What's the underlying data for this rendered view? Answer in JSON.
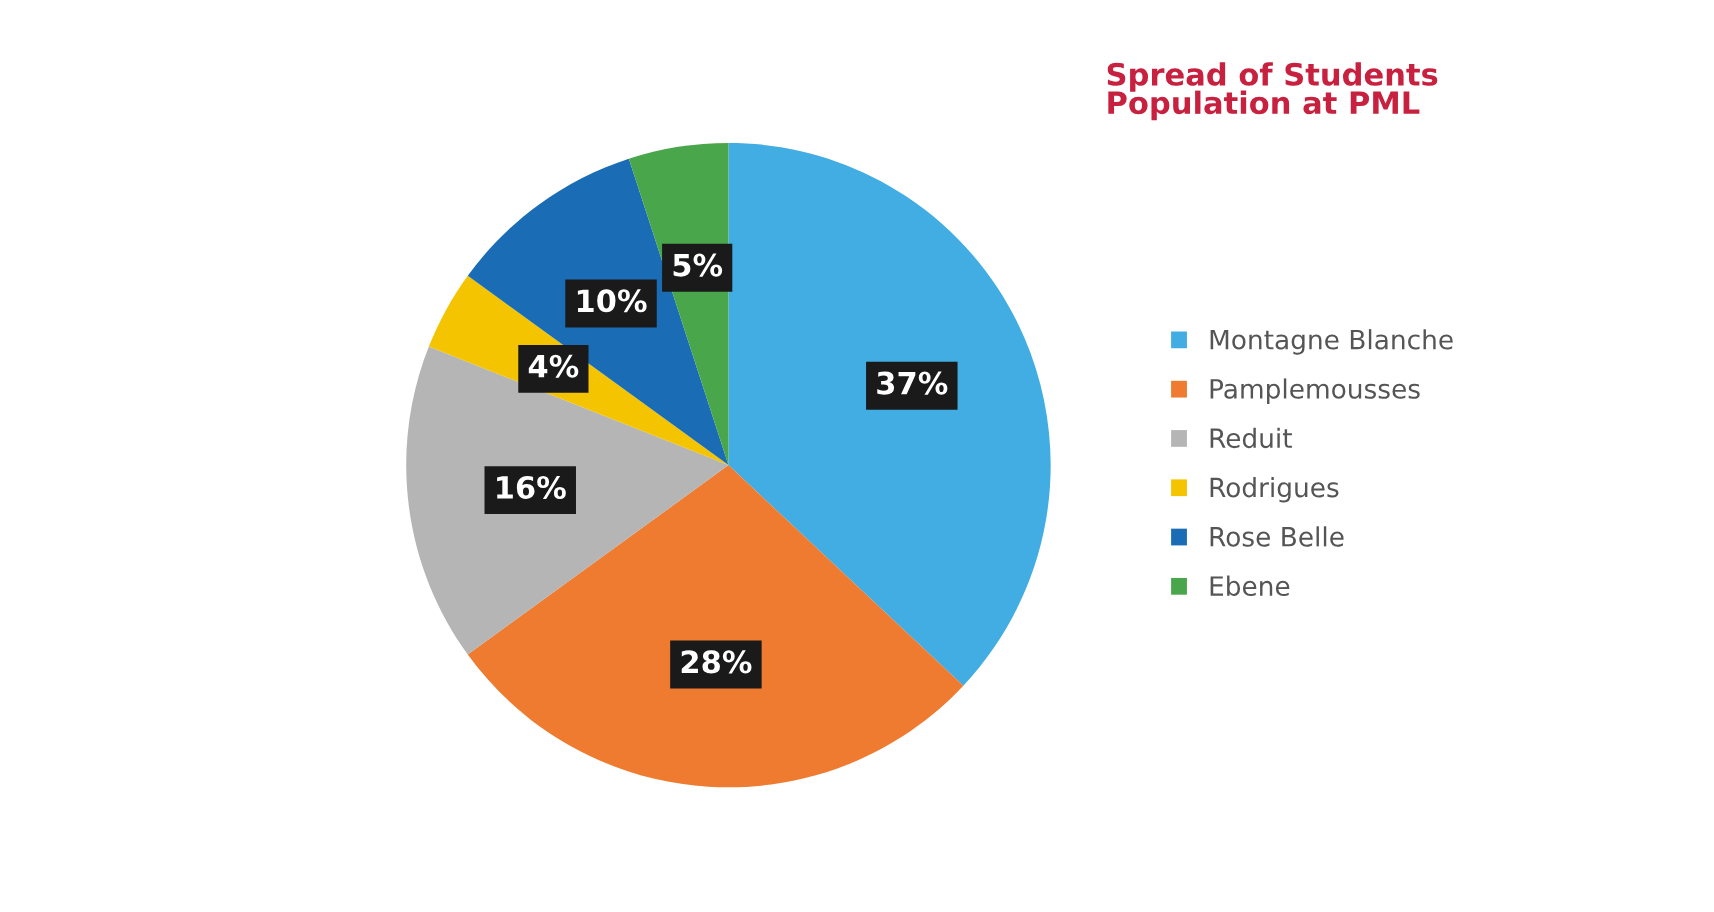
{
  "chart_data": {
    "type": "pie",
    "title": "Spread of Students\nPopulation at PML",
    "categories": [
      "Montagne Blanche",
      "Pamplemousses",
      "Reduit",
      "Rodrigues",
      "Rose Belle",
      "Ebene"
    ],
    "values": [
      37,
      28,
      16,
      4,
      10,
      5
    ],
    "colors": [
      "#41ade2",
      "#ee7b30",
      "#b5b5b5",
      "#f5c400",
      "#1a6db5",
      "#4aa64a"
    ],
    "value_labels": [
      "37%",
      "28%",
      "16%",
      "4%",
      "10%",
      "5%"
    ],
    "legend": "right"
  }
}
